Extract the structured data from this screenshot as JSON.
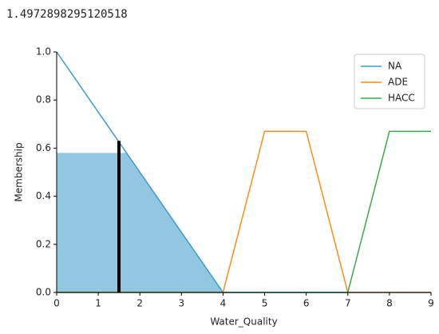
{
  "chart_data": {
    "type": "line",
    "result": 1.4972898295120518,
    "result_membership": 0.63,
    "xlabel": "Water_Quality",
    "ylabel": "Membership",
    "xlim": [
      0,
      9
    ],
    "ylim": [
      0,
      1
    ],
    "xticks": [
      0,
      1,
      2,
      3,
      4,
      5,
      6,
      7,
      8,
      9
    ],
    "yticks": [
      {
        "value": 0,
        "label": "0.0"
      },
      {
        "value": 0.2,
        "label": "0.2"
      },
      {
        "value": 0.4,
        "label": "0.4"
      },
      {
        "value": 0.6,
        "label": "0.6"
      },
      {
        "value": 0.8,
        "label": "0.8"
      },
      {
        "value": 1,
        "label": "1.0"
      }
    ],
    "legend": "upper right",
    "series": [
      {
        "name": "NA",
        "color": "#3a9bd0",
        "x": [
          0,
          4,
          9
        ],
        "values": [
          1,
          0,
          0
        ]
      },
      {
        "name": "ADE",
        "color": "#ff8c1a",
        "x": [
          0,
          4,
          5,
          6,
          7,
          9
        ],
        "values": [
          0,
          0,
          0.67,
          0.67,
          0,
          0
        ]
      },
      {
        "name": "HACC",
        "color": "#3aaa4a",
        "x": [
          0,
          7,
          8,
          9
        ],
        "values": [
          0,
          0,
          0.67,
          0.67
        ]
      }
    ],
    "fill": {
      "color": "#93c6e0",
      "x": [
        0,
        1.68,
        4
      ],
      "values": [
        0.58,
        0.58,
        0
      ]
    }
  }
}
